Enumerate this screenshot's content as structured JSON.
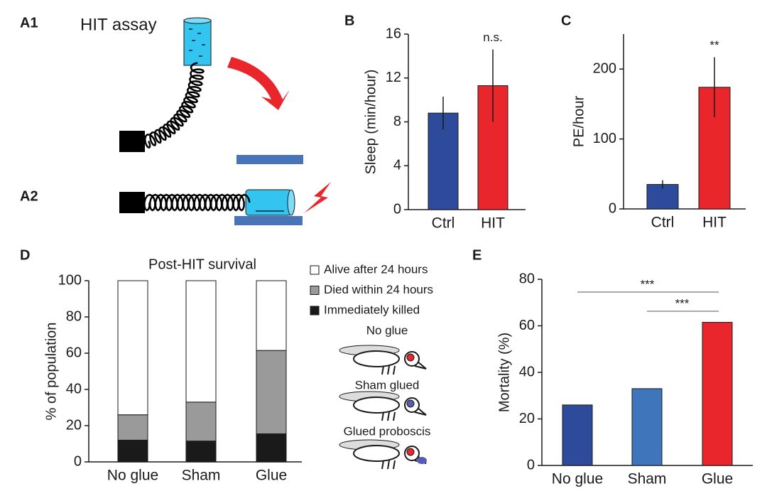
{
  "panels": {
    "a1": "A1",
    "a2": "A2",
    "b": "B",
    "c": "C",
    "d": "D",
    "e": "E"
  },
  "diagram": {
    "title": "HIT assay"
  },
  "fly_labels": [
    "No glue",
    "Sham glued",
    "Glued proboscis"
  ],
  "chart_data": [
    {
      "type": "bar",
      "ylabel": "Sleep (min/hour)",
      "categories": [
        "Ctrl",
        "HIT"
      ],
      "values": [
        8.8,
        11.3
      ],
      "errors": [
        1.5,
        3.3
      ],
      "colors": [
        "#2e4b9b",
        "#e8262b"
      ],
      "ylim": [
        0,
        16
      ],
      "yticks": [
        0,
        4,
        8,
        12,
        16
      ],
      "annotations": [
        "n.s."
      ]
    },
    {
      "type": "bar",
      "ylabel": "PE/hour",
      "categories": [
        "Ctrl",
        "HIT"
      ],
      "values": [
        35,
        174
      ],
      "errors": [
        6,
        43
      ],
      "colors": [
        "#2e4b9b",
        "#e8262b"
      ],
      "ylim": [
        0,
        250
      ],
      "yticks": [
        0,
        100,
        200
      ],
      "annotations": [
        "**"
      ]
    },
    {
      "type": "stacked_bar",
      "title": "Post-HIT survival",
      "ylabel": "% of population",
      "categories": [
        "No glue",
        "Sham",
        "Glue"
      ],
      "series": [
        {
          "name": "Immediately killed",
          "color": "#1a1a1a",
          "values": [
            12,
            11.5,
            15.5
          ]
        },
        {
          "name": "Died within 24 hours",
          "color": "#9a9a9a",
          "values": [
            14,
            21.5,
            46
          ]
        },
        {
          "name": "Alive after 24 hours",
          "color": "#ffffff",
          "values": [
            74,
            67,
            38.5
          ]
        }
      ],
      "ylim": [
        0,
        100
      ],
      "yticks": [
        0,
        20,
        40,
        60,
        80,
        100
      ]
    },
    {
      "type": "bar",
      "ylabel": "Mortality (%)",
      "categories": [
        "No glue",
        "Sham",
        "Glue"
      ],
      "values": [
        26,
        33,
        61.5
      ],
      "colors": [
        "#2e4b9b",
        "#3f76bb",
        "#e8262b"
      ],
      "ylim": [
        0,
        80
      ],
      "yticks": [
        0,
        20,
        40,
        60,
        80
      ],
      "annotations": [
        "***",
        "***"
      ]
    }
  ]
}
